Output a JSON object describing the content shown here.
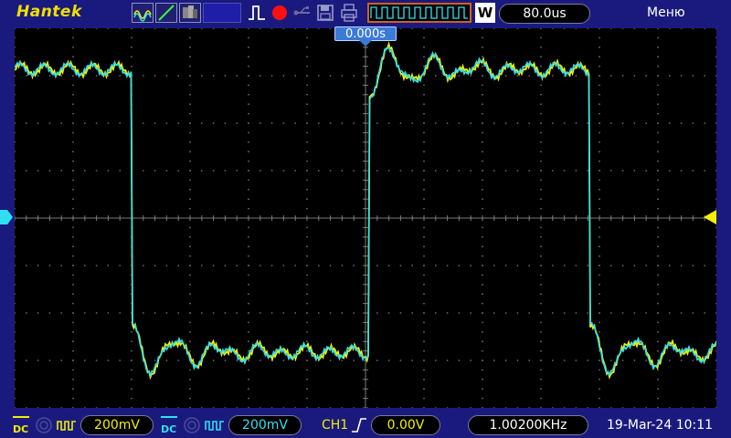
{
  "brand": "Hantek",
  "menu_label": "Меню",
  "timebase": "80.0us",
  "mode_letter": "W",
  "trigger_time": "0.000s",
  "ch1": {
    "coupling": "DC",
    "scale": "200mV",
    "color": "#f0f000"
  },
  "ch2": {
    "coupling": "DC",
    "scale": "200mV",
    "color": "#30e0f0"
  },
  "trigger": {
    "source": "CH1",
    "level": "0.00V"
  },
  "frequency": "1.00200KHz",
  "datetime": "19-Mar-24 10:11",
  "icons": [
    "waveform-display-icon",
    "trigger-mode-icon",
    "record-icon",
    "usb-icon",
    "save-icon",
    "print-icon"
  ]
}
